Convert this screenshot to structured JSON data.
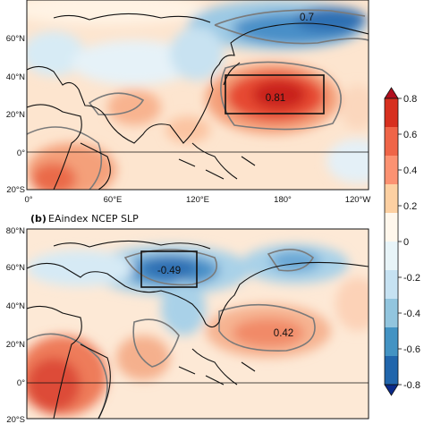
{
  "panel_a": {
    "lat_labels": [
      "60°N",
      "40°N",
      "20°N",
      "0°",
      "20°S"
    ],
    "lon_labels": [
      "0°",
      "60°E",
      "120°E",
      "180°",
      "120°W"
    ],
    "max_value": "0.81",
    "upper_value": "0.7"
  },
  "panel_b": {
    "label": "(b)",
    "title": "EAindex NCEP SLP",
    "lat_labels": [
      "80°N",
      "60°N",
      "40°N",
      "20°N",
      "0°",
      "20°S"
    ],
    "min_value": "-0.49",
    "max_value": "0.42"
  },
  "colorbar": {
    "ticks": [
      "0.8",
      "0.6",
      "0.4",
      "0.2",
      "0",
      "-0.2",
      "-0.4",
      "-0.6",
      "-0.8"
    ],
    "colors": [
      "#b10f1f",
      "#d7301f",
      "#ef6548",
      "#fc9272",
      "#fdd0a2",
      "#fff7ec",
      "#e8f4f8",
      "#c6e2f2",
      "#92c5de",
      "#4393c3",
      "#2166ac",
      "#0a2a8a"
    ]
  }
}
